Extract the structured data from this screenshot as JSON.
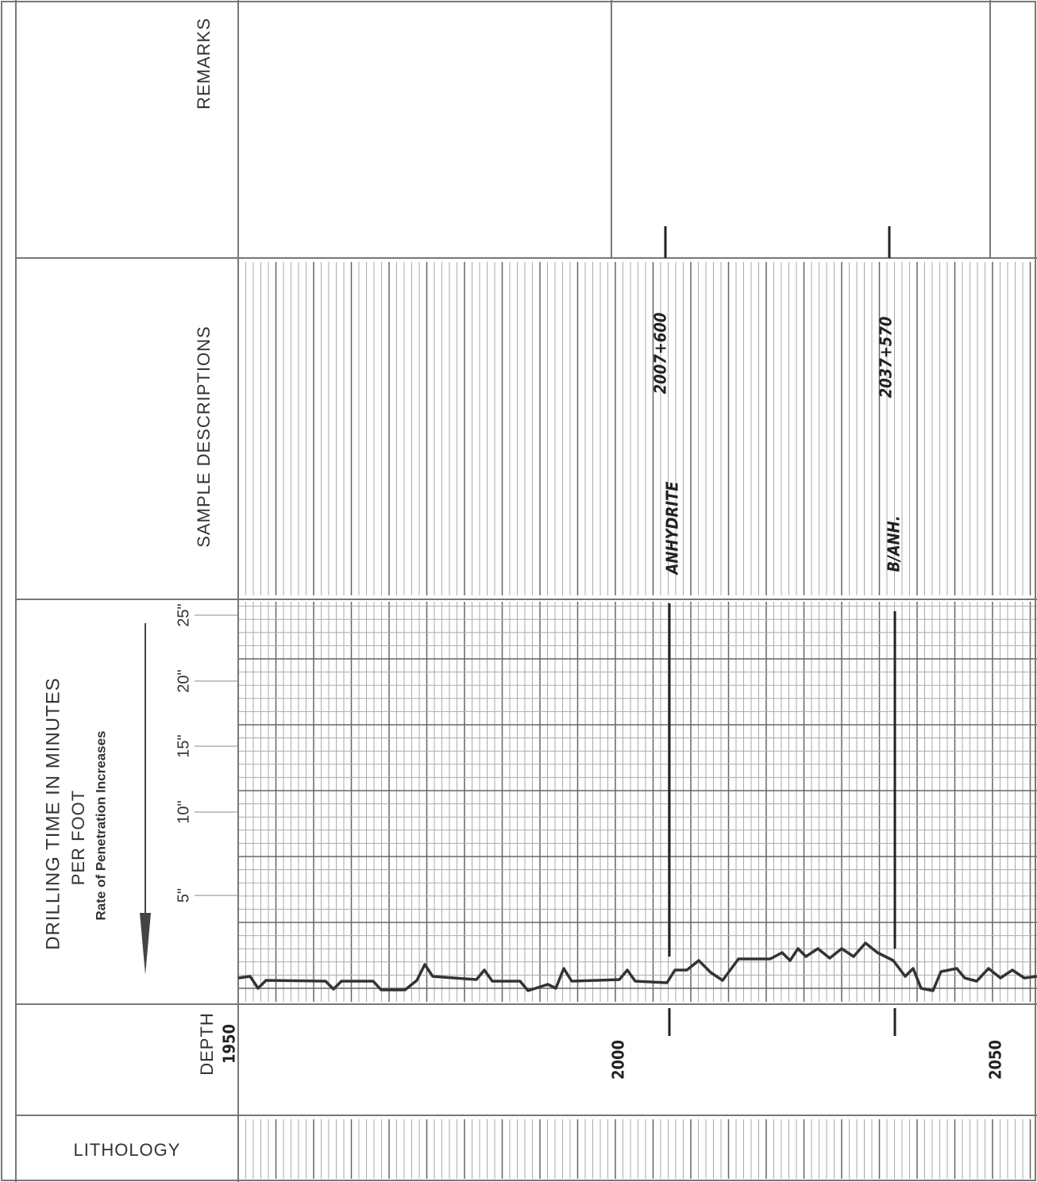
{
  "sections": {
    "remarks": "REMARKS",
    "sample_descriptions": "SAMPLE DESCRIPTIONS",
    "drilling_time": {
      "title": "DRILLING TIME IN MINUTES",
      "subtitle": "PER FOOT",
      "note": "Rate of Penetration Increases",
      "scale": [
        "25\"",
        "20\"",
        "15\"",
        "10\"",
        "5\""
      ]
    },
    "depth": {
      "label": "DEPTH",
      "start": "1950",
      "marks": [
        "2000",
        "2050"
      ]
    },
    "lithology": "LITHOLOGY"
  },
  "annotations": [
    {
      "label": "ANHYDRITE",
      "value": "2007+600"
    },
    {
      "label": "B/ANH.",
      "value": "2037+570"
    }
  ]
}
